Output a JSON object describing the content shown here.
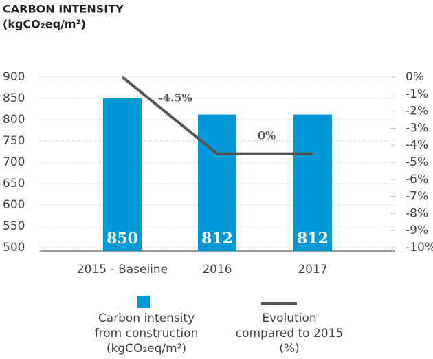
{
  "chart_data": {
    "type": "bar",
    "title": "CARBON INTENSITY",
    "subtitle": "(kgCO₂eq/m²)",
    "categories": [
      "2015 - Baseline",
      "2016",
      "2017"
    ],
    "series": [
      {
        "name": "Carbon intensity\nfrom construction\n(kgCO₂eq/m²)",
        "type": "bar",
        "color": "#0099d8",
        "values": [
          850,
          812,
          812
        ]
      },
      {
        "name": "Evolution\ncompared to 2015\n(%)",
        "type": "line",
        "axis": "y2",
        "color": "#555555",
        "values": [
          0,
          -4.5,
          -4.5
        ]
      }
    ],
    "annotations": [
      "-4.5%",
      "0%"
    ],
    "ylim": [
      500,
      900
    ],
    "yticks": [
      500,
      550,
      600,
      650,
      700,
      750,
      800,
      850,
      900
    ],
    "y2lim": [
      -10,
      0
    ],
    "y2ticks": [
      {
        "value": 0,
        "label": "0%"
      },
      {
        "value": -1,
        "label": "-1%"
      },
      {
        "value": -2,
        "label": "-2%"
      },
      {
        "value": -3,
        "label": "-3%"
      },
      {
        "value": -4,
        "label": "-4%"
      },
      {
        "value": -5,
        "label": "-5%"
      },
      {
        "value": -6,
        "label": "-6%"
      },
      {
        "value": -7,
        "label": "-7%"
      },
      {
        "value": -8,
        "label": "-8%"
      },
      {
        "value": -9,
        "label": "-9%"
      },
      {
        "value": -10,
        "label": "-10%"
      }
    ],
    "grid": true
  }
}
